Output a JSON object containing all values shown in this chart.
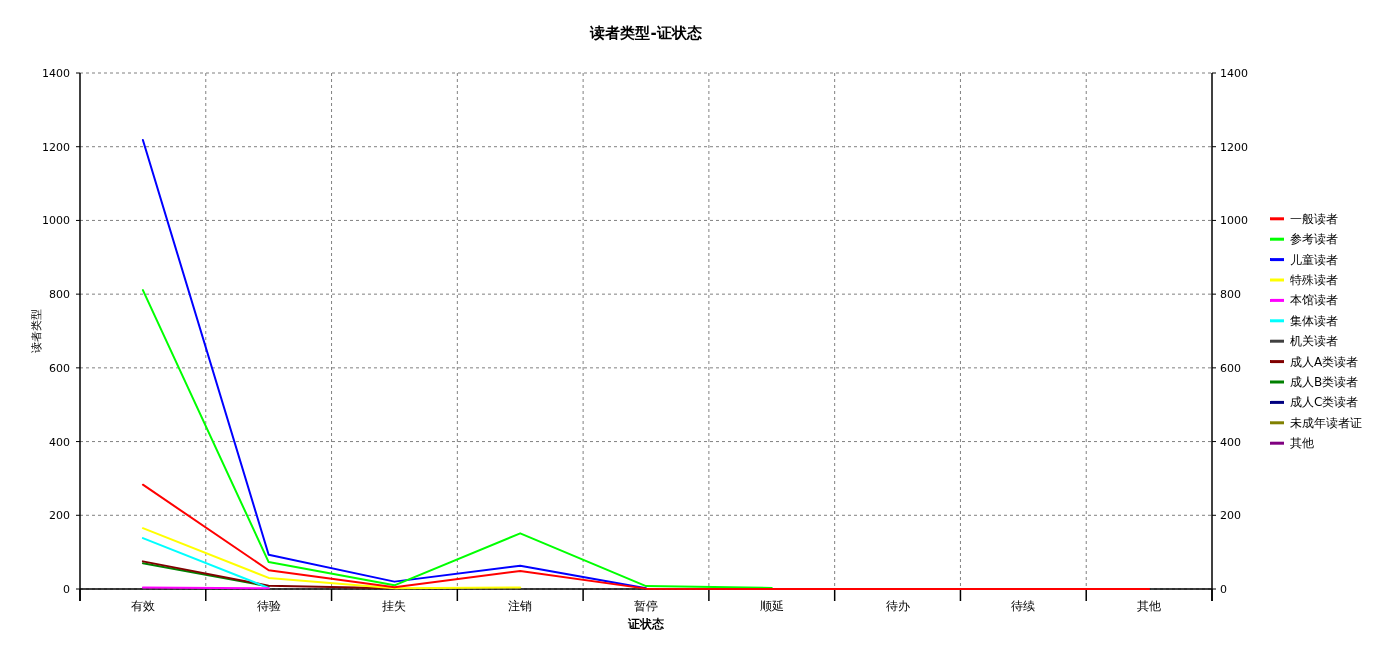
{
  "chart_data": {
    "type": "line",
    "title": "读者类型-证状态",
    "xlabel": "证状态",
    "ylabel": "读者类型",
    "categories": [
      "有效",
      "待验",
      "挂失",
      "注销",
      "暂停",
      "顺延",
      "待办",
      "待续",
      "其他"
    ],
    "series": [
      {
        "name": "一般读者",
        "color": "#ff0000",
        "values": [
          283,
          51,
          5,
          49,
          1,
          0,
          0,
          0,
          0
        ]
      },
      {
        "name": "参考读者",
        "color": "#00ff00",
        "values": [
          811,
          73,
          10,
          151,
          8,
          3,
          null,
          null,
          null
        ]
      },
      {
        "name": "儿童读者",
        "color": "#0000ff",
        "values": [
          1218,
          93,
          20,
          63,
          2,
          null,
          null,
          null,
          null
        ]
      },
      {
        "name": "特殊读者",
        "color": "#ffff00",
        "values": [
          165,
          30,
          2,
          4,
          null,
          null,
          null,
          null,
          null
        ]
      },
      {
        "name": "本馆读者",
        "color": "#ff00ff",
        "values": [
          4,
          2,
          null,
          null,
          null,
          null,
          null,
          null,
          null
        ]
      },
      {
        "name": "集体读者",
        "color": "#00ffff",
        "values": [
          138,
          3,
          null,
          null,
          null,
          null,
          null,
          null,
          null
        ]
      },
      {
        "name": "机关读者",
        "color": "#404040",
        "values": [
          null,
          null,
          null,
          null,
          null,
          null,
          null,
          null,
          null
        ]
      },
      {
        "name": "成人A类读者",
        "color": "#800000",
        "values": [
          75,
          9,
          2,
          null,
          null,
          null,
          null,
          null,
          null
        ]
      },
      {
        "name": "成人B类读者",
        "color": "#008000",
        "values": [
          70,
          7,
          null,
          null,
          null,
          null,
          null,
          null,
          null
        ]
      },
      {
        "name": "成人C类读者",
        "color": "#000080",
        "values": [
          null,
          null,
          null,
          null,
          null,
          null,
          null,
          null,
          null
        ]
      },
      {
        "name": "未成年读者证",
        "color": "#808000",
        "values": [
          null,
          null,
          null,
          null,
          null,
          null,
          null,
          null,
          null
        ]
      },
      {
        "name": "其他",
        "color": "#800080",
        "values": [
          null,
          null,
          null,
          null,
          null,
          null,
          null,
          null,
          null
        ]
      }
    ],
    "ylim": [
      0,
      1400
    ],
    "yticks": [
      0,
      200,
      400,
      600,
      800,
      1000,
      1200,
      1400
    ],
    "y2lim": [
      0,
      1400
    ],
    "y2ticks": [
      0,
      200,
      400,
      600,
      800,
      1000,
      1200,
      1400
    ],
    "grid": true,
    "legend": "right"
  }
}
